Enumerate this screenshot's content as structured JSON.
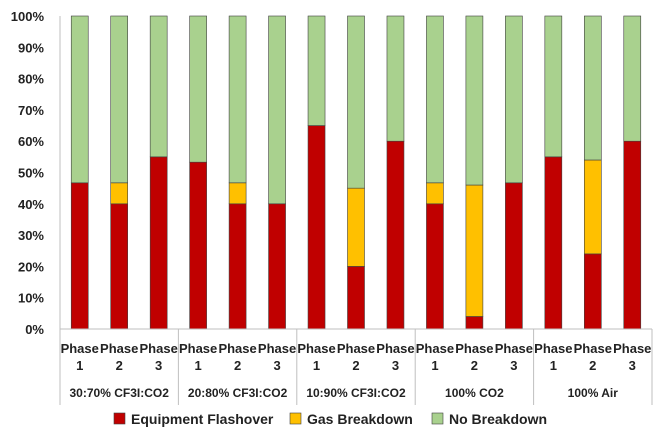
{
  "chart_data": {
    "type": "bar",
    "stacked": true,
    "percent": true,
    "title": "",
    "xlabel": "",
    "ylabel": "",
    "ylim": [
      0,
      100
    ],
    "yticks": [
      "0%",
      "10%",
      "20%",
      "30%",
      "40%",
      "50%",
      "60%",
      "70%",
      "80%",
      "90%",
      "100%"
    ],
    "groups": [
      {
        "label": "30:70% CF3I:CO2",
        "categories": [
          [
            "Phase",
            "1"
          ],
          [
            "Phase",
            "2"
          ],
          [
            "Phase",
            "3"
          ]
        ]
      },
      {
        "label": "20:80% CF3I:CO2",
        "categories": [
          [
            "Phase",
            "1"
          ],
          [
            "Phase",
            "2"
          ],
          [
            "Phase",
            "3"
          ]
        ]
      },
      {
        "label": "10:90% CF3I:CO2",
        "categories": [
          [
            "Phase",
            "1"
          ],
          [
            "Phase",
            "2"
          ],
          [
            "Phase",
            "3"
          ]
        ]
      },
      {
        "label": "100% CO2",
        "categories": [
          [
            "Phase",
            "1"
          ],
          [
            "Phase",
            "2"
          ],
          [
            "Phase",
            "3"
          ]
        ]
      },
      {
        "label": "100% Air",
        "categories": [
          [
            "Phase",
            "1"
          ],
          [
            "Phase",
            "2"
          ],
          [
            "Phase",
            "3"
          ]
        ]
      }
    ],
    "series": [
      {
        "name": "Equipment Flashover",
        "color": "#c00000",
        "values": [
          46.7,
          40,
          55,
          53.3,
          40,
          40,
          65,
          20,
          60,
          40,
          4,
          46.7,
          55,
          24,
          60
        ]
      },
      {
        "name": "Gas Breakdown",
        "color": "#ffc000",
        "values": [
          0,
          6.7,
          0,
          0,
          6.7,
          0,
          0,
          25,
          0,
          6.7,
          42,
          0,
          0,
          30,
          0
        ]
      },
      {
        "name": "No Breakdown",
        "color": "#a9d18e",
        "values": [
          53.3,
          53.3,
          45,
          46.7,
          53.3,
          60,
          35,
          55,
          40,
          53.3,
          54,
          53.3,
          45,
          46,
          40
        ]
      }
    ],
    "grid": false,
    "legend_position": "bottom"
  }
}
